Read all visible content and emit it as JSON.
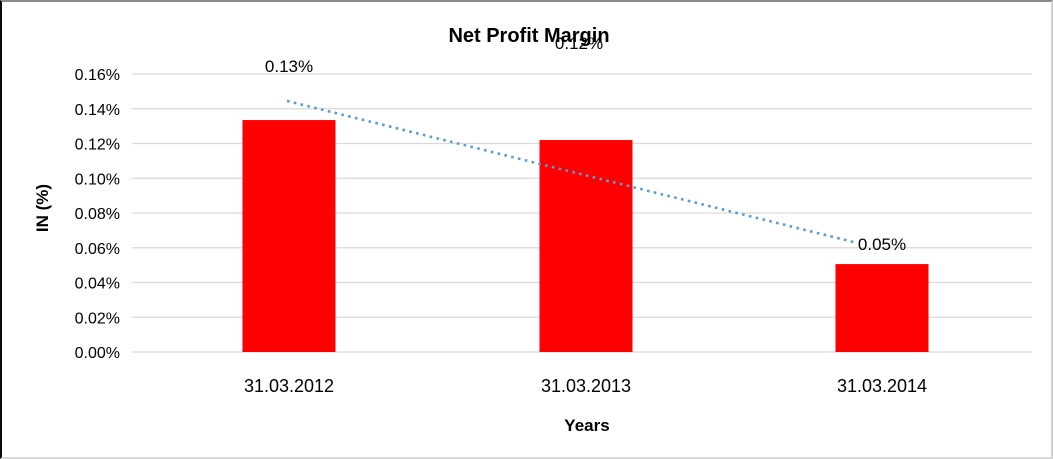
{
  "chart_data": {
    "type": "bar",
    "title": "Net Profit Margin",
    "xlabel": "Years",
    "ylabel": "IN (%)",
    "categories": [
      "31.03.2012",
      "31.03.2013",
      "31.03.2014"
    ],
    "values": [
      0.1335,
      0.122,
      0.0506
    ],
    "data_labels": [
      "0.13%",
      "0.12%",
      "0.05%"
    ],
    "ylim": [
      0,
      0.16
    ],
    "ytick_step": 0.02,
    "ytick_labels": [
      "0.00%",
      "0.02%",
      "0.04%",
      "0.06%",
      "0.08%",
      "0.10%",
      "0.12%",
      "0.14%",
      "0.16%"
    ],
    "grid": true,
    "legend": false,
    "bar_color": "#FF0000",
    "gridline_color": "#D9D9D9",
    "trendline": {
      "type": "linear",
      "style": "dotted",
      "color": "#5B9BD5",
      "start_value": 0.1445,
      "end_value": 0.0628
    }
  }
}
